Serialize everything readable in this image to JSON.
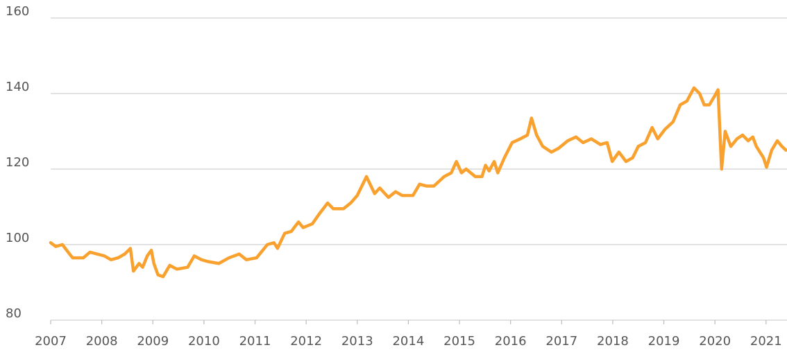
{
  "chart_data": {
    "type": "line",
    "x": [
      2007.0,
      2007.1,
      2007.23,
      2007.37,
      2007.43,
      2007.64,
      2007.77,
      2007.91,
      2008.05,
      2008.18,
      2008.32,
      2008.45,
      2008.56,
      2008.62,
      2008.73,
      2008.8,
      2008.89,
      2008.97,
      2009.02,
      2009.1,
      2009.2,
      2009.33,
      2009.47,
      2009.68,
      2009.81,
      2009.95,
      2010.08,
      2010.29,
      2010.49,
      2010.69,
      2010.83,
      2011.03,
      2011.24,
      2011.37,
      2011.44,
      2011.58,
      2011.71,
      2011.85,
      2011.94,
      2012.12,
      2012.25,
      2012.42,
      2012.53,
      2012.73,
      2012.87,
      2013.0,
      2013.18,
      2013.34,
      2013.44,
      2013.61,
      2013.75,
      2013.88,
      2014.09,
      2014.22,
      2014.36,
      2014.5,
      2014.7,
      2014.84,
      2014.94,
      2015.04,
      2015.13,
      2015.31,
      2015.44,
      2015.51,
      2015.58,
      2015.68,
      2015.75,
      2015.88,
      2016.03,
      2016.19,
      2016.33,
      2016.41,
      2016.51,
      2016.63,
      2016.8,
      2016.94,
      2017.12,
      2017.28,
      2017.42,
      2017.58,
      2017.76,
      2017.89,
      2017.99,
      2018.12,
      2018.26,
      2018.39,
      2018.5,
      2018.64,
      2018.77,
      2018.88,
      2019.02,
      2019.18,
      2019.32,
      2019.45,
      2019.59,
      2019.7,
      2019.79,
      2019.89,
      2020.0,
      2020.06,
      2020.13,
      2020.2,
      2020.31,
      2020.43,
      2020.54,
      2020.65,
      2020.74,
      2020.81,
      2020.95,
      2021.01,
      2021.11,
      2021.22,
      2021.31,
      2021.39
    ],
    "series": [
      {
        "color": "#f9a12e",
        "values": [
          100.5,
          99.5,
          100,
          97.5,
          96.5,
          96.5,
          98,
          97.5,
          97,
          96,
          96.5,
          97.5,
          99,
          93,
          95,
          94,
          97,
          98.5,
          95,
          92,
          91.5,
          94.5,
          93.5,
          94,
          97,
          96,
          95.5,
          95,
          96.5,
          97.5,
          96,
          96.5,
          100,
          100.5,
          99,
          103,
          103.5,
          106,
          104.5,
          105.5,
          108,
          111,
          109.5,
          109.5,
          111,
          113,
          118,
          113.5,
          115,
          112.5,
          114,
          113,
          113,
          116,
          115.5,
          115.5,
          118,
          119,
          122,
          119,
          120,
          118,
          118,
          121,
          119.5,
          122,
          119,
          123,
          127,
          128,
          129,
          133.5,
          129,
          126,
          124.5,
          125.5,
          127.5,
          128.5,
          127,
          128,
          126.5,
          127,
          122,
          124.5,
          122,
          123,
          126,
          127,
          131,
          128,
          130.5,
          132.5,
          137,
          138,
          141.5,
          140,
          137,
          137,
          139.5,
          141,
          120,
          130,
          126,
          128,
          129,
          127.5,
          128.5,
          126,
          123,
          120.5,
          125,
          127.5,
          126,
          125
        ]
      }
    ],
    "xlim": [
      2007,
      2021.41
    ],
    "xticks": [
      2007,
      2008,
      2009,
      2010,
      2011,
      2012,
      2013,
      2014,
      2015,
      2016,
      2017,
      2018,
      2019,
      2020,
      2021
    ],
    "ylim": [
      80,
      160
    ],
    "yticks": [
      80,
      100,
      120,
      140,
      160
    ],
    "grid": true
  }
}
